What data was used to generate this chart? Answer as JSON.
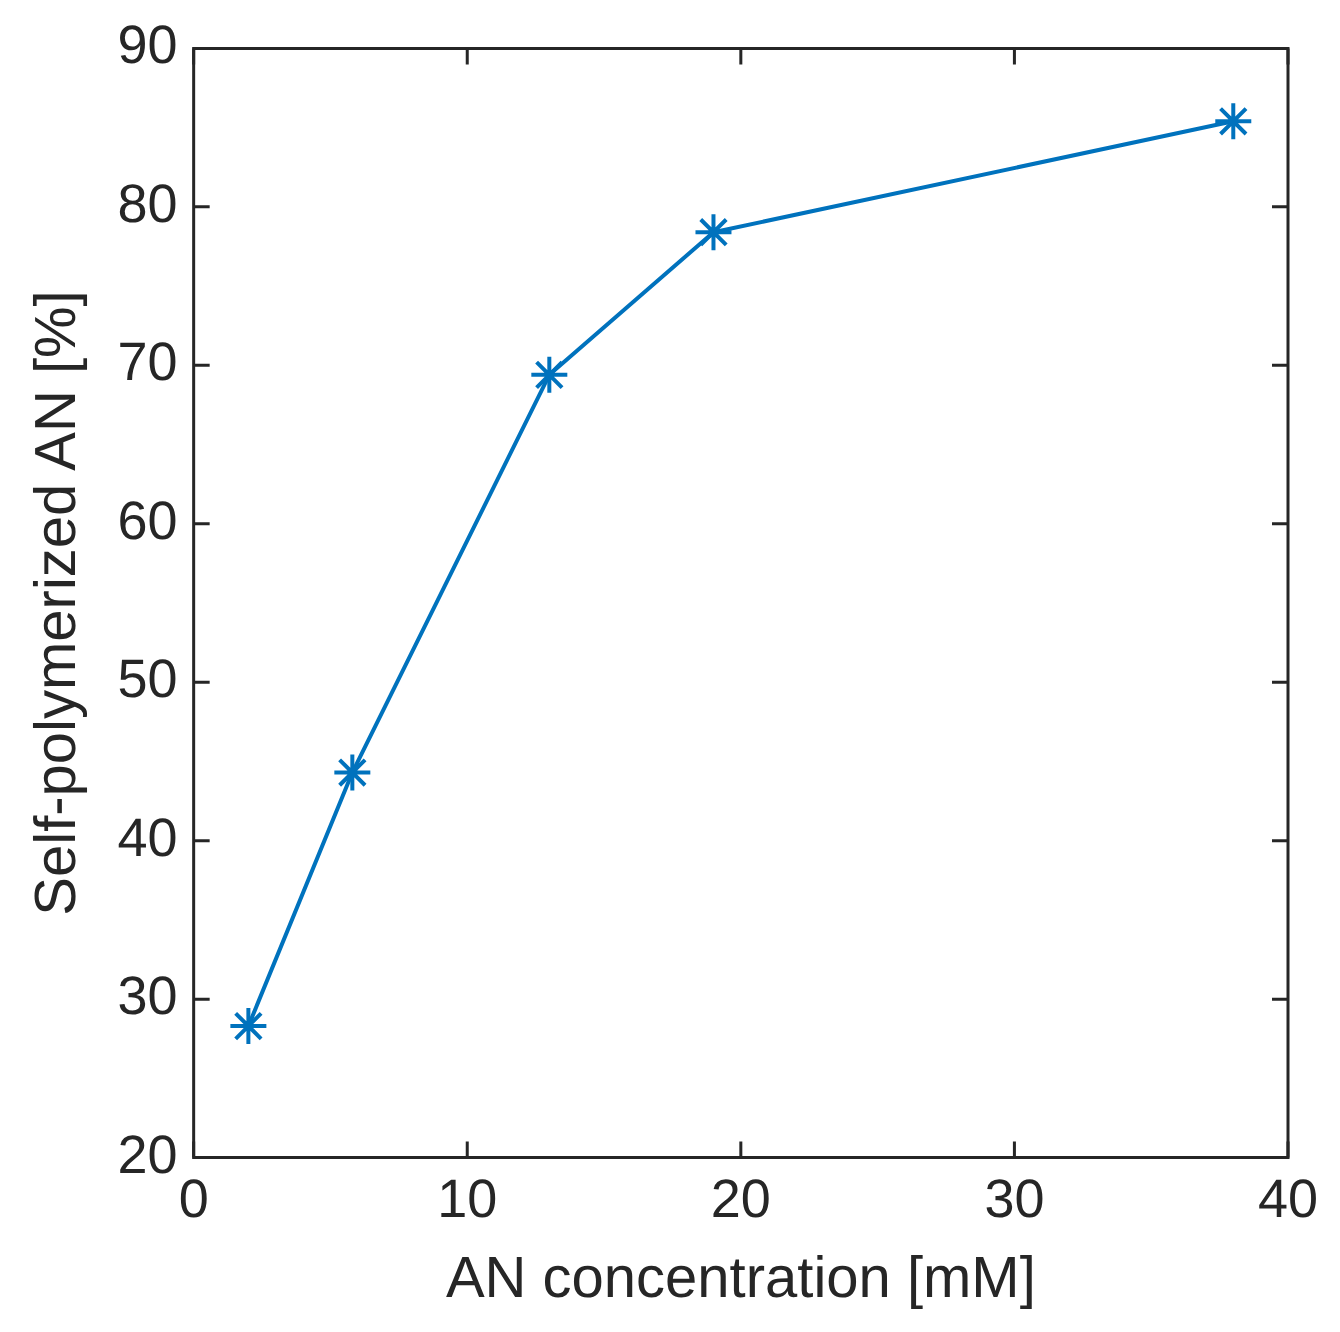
{
  "chart_data": {
    "type": "line",
    "xlabel": "AN concentration [mM]",
    "ylabel": "Self-polymerized AN [%]",
    "x": [
      2,
      5.8,
      13,
      19,
      38
    ],
    "series": [
      {
        "color": "#0072bd",
        "values": [
          28.3,
          44.3,
          69.4,
          78.4,
          85.4
        ]
      }
    ],
    "xlim": [
      0,
      40
    ],
    "xticks": [
      0,
      10,
      20,
      30,
      40
    ],
    "ylim": [
      20,
      90
    ],
    "yticks": [
      20,
      30,
      40,
      50,
      60,
      70,
      80,
      90
    ],
    "grid": false,
    "legend": false,
    "marker": "cross",
    "line_style": "solid"
  }
}
